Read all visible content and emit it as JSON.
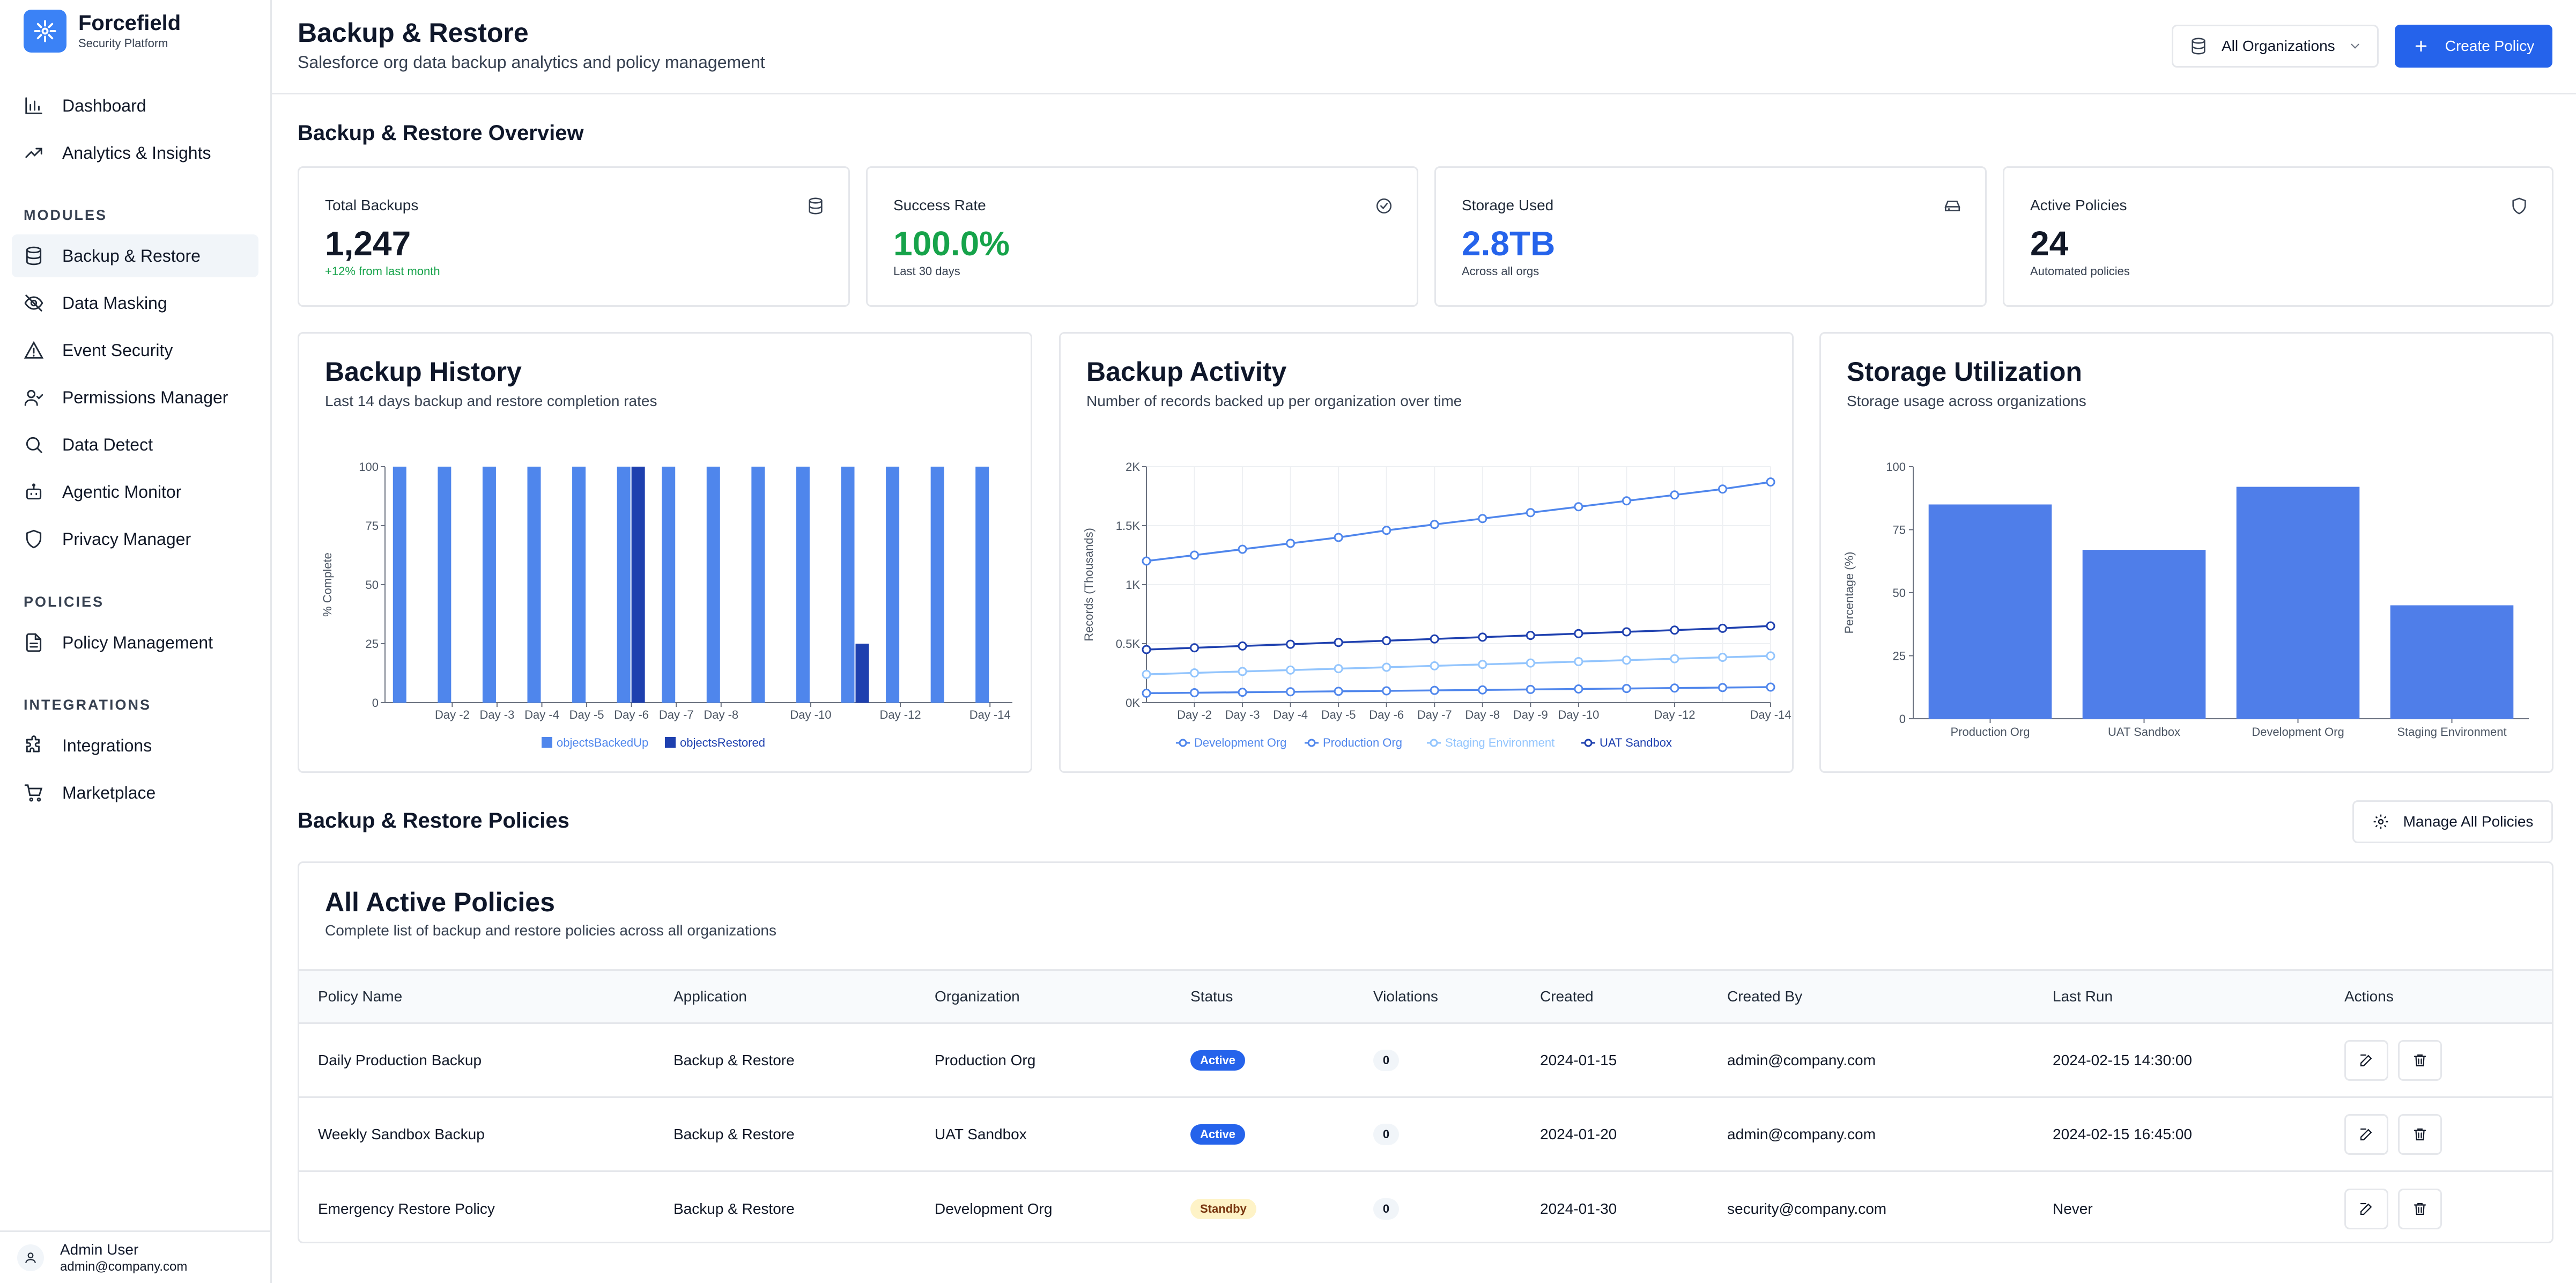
{
  "brand": {
    "name": "Forcefield",
    "subtitle": "Security Platform"
  },
  "nav": {
    "top": [
      {
        "label": "Dashboard",
        "icon": "bar-chart-icon"
      },
      {
        "label": "Analytics & Insights",
        "icon": "trending-up-icon"
      }
    ],
    "modules_title": "MODULES",
    "modules": [
      {
        "label": "Backup & Restore",
        "icon": "database-icon",
        "active": true
      },
      {
        "label": "Data Masking",
        "icon": "eye-off-icon"
      },
      {
        "label": "Event Security",
        "icon": "alert-triangle-icon"
      },
      {
        "label": "Permissions Manager",
        "icon": "user-check-icon"
      },
      {
        "label": "Data Detect",
        "icon": "search-icon"
      },
      {
        "label": "Agentic Monitor",
        "icon": "bot-icon"
      },
      {
        "label": "Privacy Manager",
        "icon": "shield-icon"
      }
    ],
    "policies_title": "POLICIES",
    "policies": [
      {
        "label": "Policy Management",
        "icon": "file-text-icon"
      }
    ],
    "integrations_title": "INTEGRATIONS",
    "integrations": [
      {
        "label": "Integrations",
        "icon": "puzzle-icon"
      },
      {
        "label": "Marketplace",
        "icon": "cart-icon"
      }
    ]
  },
  "user": {
    "name": "Admin User",
    "email": "admin@company.com"
  },
  "header": {
    "title": "Backup & Restore",
    "subtitle": "Salesforce org data backup analytics and policy management",
    "org_select": "All Organizations",
    "create_button": "Create Policy"
  },
  "overview": {
    "title": "Backup & Restore Overview",
    "stats": [
      {
        "label": "Total Backups",
        "value": "1,247",
        "note": "+12% from last month",
        "value_color": "#111827",
        "note_color": "#16a34a",
        "icon": "database-icon"
      },
      {
        "label": "Success Rate",
        "value": "100.0%",
        "note": "Last 30 days",
        "value_color": "#16a34a",
        "note_color": "#374151",
        "icon": "check-circle-icon"
      },
      {
        "label": "Storage Used",
        "value": "2.8TB",
        "note": "Across all orgs",
        "value_color": "#2563eb",
        "note_color": "#374151",
        "icon": "hard-drive-icon"
      },
      {
        "label": "Active Policies",
        "value": "24",
        "note": "Automated policies",
        "value_color": "#111827",
        "note_color": "#374151",
        "icon": "shield-icon"
      }
    ]
  },
  "charts": {
    "history": {
      "title": "Backup History",
      "subtitle": "Last 14 days backup and restore completion rates"
    },
    "activity": {
      "title": "Backup Activity",
      "subtitle": "Number of records backed up per organization over time"
    },
    "storage": {
      "title": "Storage Utilization",
      "subtitle": "Storage usage across organizations"
    }
  },
  "chart_data": [
    {
      "type": "bar",
      "title": "Backup History",
      "ylabel": "% Complete",
      "ylim": [
        0,
        100
      ],
      "yticks": [
        0,
        25,
        50,
        75,
        100
      ],
      "categories": [
        "Day -1",
        "Day -2",
        "Day -3",
        "Day -4",
        "Day -5",
        "Day -6",
        "Day -7",
        "Day -8",
        "Day -9",
        "Day -10",
        "Day -11",
        "Day -12",
        "Day -13",
        "Day -14"
      ],
      "xtick_labels": [
        "Day -2",
        "Day -3",
        "Day -4",
        "Day -5",
        "Day -6",
        "Day -7",
        "Day -8",
        "Day -10",
        "Day -12",
        "Day -14"
      ],
      "series": [
        {
          "name": "objectsBackedUp",
          "color": "#4f86ec",
          "values": [
            100,
            100,
            100,
            100,
            100,
            100,
            100,
            100,
            100,
            100,
            100,
            100,
            100,
            100
          ]
        },
        {
          "name": "objectsRestored",
          "color": "#1e40af",
          "values": [
            0,
            0,
            0,
            0,
            0,
            100,
            0,
            0,
            0,
            0,
            25,
            0,
            0,
            0
          ]
        }
      ],
      "legend": "bottom"
    },
    {
      "type": "line",
      "title": "Backup Activity",
      "ylabel": "Records (Thousands)",
      "ylim": [
        0,
        2000
      ],
      "ytick_labels": [
        "0K",
        "0.5K",
        "1K",
        "1.5K",
        "2K"
      ],
      "x": [
        "Day -1",
        "Day -2",
        "Day -3",
        "Day -4",
        "Day -5",
        "Day -6",
        "Day -7",
        "Day -8",
        "Day -9",
        "Day -10",
        "Day -11",
        "Day -12",
        "Day -13",
        "Day -14"
      ],
      "xtick_labels": [
        "Day -2",
        "Day -3",
        "Day -4",
        "Day -5",
        "Day -6",
        "Day -7",
        "Day -8",
        "Day -9",
        "Day -10",
        "Day -12",
        "Day -14"
      ],
      "series": [
        {
          "name": "Development Org",
          "color": "#4f86ec",
          "values": [
            1200,
            1250,
            1300,
            1350,
            1400,
            1460,
            1510,
            1560,
            1610,
            1660,
            1710,
            1760,
            1810,
            1870
          ]
        },
        {
          "name": "Production Org",
          "color": "#4f86ec",
          "values": [
            80,
            84,
            88,
            92,
            96,
            100,
            104,
            108,
            112,
            116,
            120,
            124,
            128,
            132
          ]
        },
        {
          "name": "Staging Environment",
          "color": "#93c5fd",
          "values": [
            240,
            252,
            264,
            276,
            288,
            300,
            312,
            324,
            336,
            348,
            360,
            372,
            384,
            396
          ]
        },
        {
          "name": "UAT Sandbox",
          "color": "#1e40af",
          "values": [
            450,
            465,
            480,
            495,
            510,
            525,
            540,
            555,
            570,
            585,
            600,
            615,
            630,
            650
          ]
        }
      ],
      "legend": "bottom"
    },
    {
      "type": "bar",
      "title": "Storage Utilization",
      "ylabel": "Percentage (%)",
      "ylim": [
        0,
        100
      ],
      "yticks": [
        0,
        25,
        50,
        75,
        100
      ],
      "categories": [
        "Production Org",
        "UAT Sandbox",
        "Development Org",
        "Staging Environment"
      ],
      "values": [
        85,
        67,
        92,
        45
      ],
      "color": "#4f7ee9"
    }
  ],
  "policies": {
    "section_title": "Backup & Restore Policies",
    "manage_button": "Manage All Policies",
    "card_title": "All Active Policies",
    "card_subtitle": "Complete list of backup and restore policies across all organizations",
    "columns": [
      "Policy Name",
      "Application",
      "Organization",
      "Status",
      "Violations",
      "Created",
      "Created By",
      "Last Run",
      "Actions"
    ],
    "rows": [
      {
        "name": "Daily Production Backup",
        "application": "Backup & Restore",
        "organization": "Production Org",
        "status": "Active",
        "violations": "0",
        "created": "2024-01-15",
        "created_by": "admin@company.com",
        "last_run": "2024-02-15 14:30:00"
      },
      {
        "name": "Weekly Sandbox Backup",
        "application": "Backup & Restore",
        "organization": "UAT Sandbox",
        "status": "Active",
        "violations": "0",
        "created": "2024-01-20",
        "created_by": "admin@company.com",
        "last_run": "2024-02-15 16:45:00"
      },
      {
        "name": "Emergency Restore Policy",
        "application": "Backup & Restore",
        "organization": "Development Org",
        "status": "Standby",
        "violations": "0",
        "created": "2024-01-30",
        "created_by": "security@company.com",
        "last_run": "Never"
      }
    ]
  },
  "colors": {
    "accent": "#2563eb",
    "success": "#16a34a",
    "border": "#e5e7eb"
  }
}
